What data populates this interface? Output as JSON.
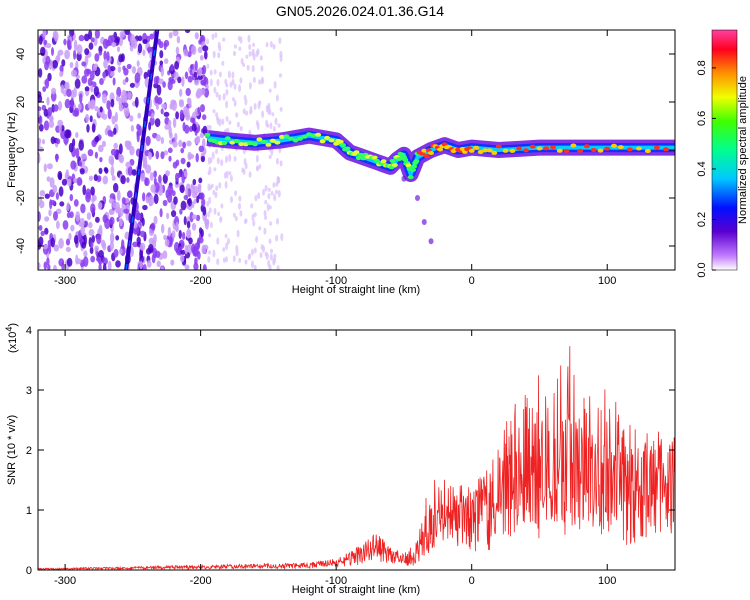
{
  "title": "GN05.2026.024.01.36.G14",
  "colors": {
    "axis": "#000000",
    "snr_line": "#ee2222",
    "background": "#ffffff"
  },
  "chart_data": [
    {
      "type": "heatmap",
      "name": "spectrogram",
      "xlabel": "Height of straight line (km)",
      "ylabel": "Frequency (Hz)",
      "xlim": [
        -320,
        150
      ],
      "ylim": [
        -50,
        50
      ],
      "x_ticks": [
        -300,
        -200,
        -100,
        0,
        100
      ],
      "x_tick_labels": [
        "-300",
        "-200",
        "-100",
        "0",
        "100"
      ],
      "y_ticks": [
        -40,
        -20,
        0,
        20,
        40
      ],
      "y_tick_labels": [
        "-40",
        "-20",
        "0",
        "20",
        "40"
      ],
      "colorbar": {
        "label": "Normalized spectral amplitude",
        "range": [
          0,
          0.95
        ],
        "ticks": [
          0.0,
          0.2,
          0.4,
          0.6,
          0.8
        ],
        "tick_labels": [
          "0.0",
          "0.2",
          "0.4",
          "0.6",
          "0.8"
        ],
        "colormap": "rainbow"
      },
      "features": {
        "noise_band_x": [
          -320,
          -195
        ],
        "diagonal_streak": {
          "x": [
            -255,
            -232
          ],
          "y": [
            -50,
            50
          ]
        },
        "main_trace": [
          [
            -195,
            5
          ],
          [
            -180,
            4
          ],
          [
            -160,
            3
          ],
          [
            -140,
            4
          ],
          [
            -120,
            6
          ],
          [
            -100,
            4
          ],
          [
            -90,
            -1
          ],
          [
            -80,
            -3
          ],
          [
            -70,
            -5
          ],
          [
            -60,
            -7
          ],
          [
            -55,
            -4
          ],
          [
            -50,
            -2
          ],
          [
            -45,
            -10
          ],
          [
            -40,
            -3
          ],
          [
            -30,
            0
          ],
          [
            -20,
            2
          ],
          [
            -10,
            0
          ],
          [
            0,
            1
          ],
          [
            20,
            0
          ],
          [
            50,
            1
          ],
          [
            80,
            1
          ],
          [
            110,
            1
          ],
          [
            150,
            1
          ]
        ],
        "faint_tail": [
          [
            -50,
            -12
          ],
          [
            -40,
            -20
          ],
          [
            -35,
            -30
          ],
          [
            -30,
            -38
          ]
        ]
      }
    },
    {
      "type": "line",
      "name": "snr",
      "xlabel": "Height of straight line (km)",
      "ylabel": "SNR (10 * v/v)",
      "y_multiplier": "(x10",
      "y_multiplier_exp": "4",
      "y_multiplier_close": ")",
      "xlim": [
        -320,
        150
      ],
      "ylim": [
        0,
        4
      ],
      "x_ticks": [
        -300,
        -200,
        -100,
        0,
        100
      ],
      "x_tick_labels": [
        "-300",
        "-200",
        "-100",
        "0",
        "100"
      ],
      "y_ticks": [
        0,
        1,
        2,
        3,
        4
      ],
      "y_tick_labels": [
        "0",
        "1",
        "2",
        "3",
        "4"
      ],
      "series": [
        {
          "x": [
            -320,
            -300,
            -280,
            -260,
            -240,
            -220,
            -200,
            -180,
            -160,
            -140,
            -120,
            -110,
            -100,
            -90,
            -80,
            -70,
            -60,
            -50,
            -40,
            -30,
            -20,
            -10,
            0,
            10,
            20,
            30,
            40,
            50,
            60,
            70,
            80,
            90,
            100,
            110,
            120,
            130,
            140,
            150
          ],
          "values": [
            0.02,
            0.02,
            0.03,
            0.03,
            0.04,
            0.05,
            0.05,
            0.06,
            0.07,
            0.07,
            0.08,
            0.1,
            0.12,
            0.18,
            0.28,
            0.42,
            0.22,
            0.15,
            0.25,
            0.7,
            0.95,
            0.95,
            0.9,
            1.0,
            1.2,
            1.3,
            1.5,
            1.6,
            1.5,
            1.7,
            1.6,
            1.4,
            1.5,
            1.4,
            1.3,
            1.4,
            1.5,
            1.5
          ],
          "envelope": [
            0.03,
            0.03,
            0.04,
            0.04,
            0.05,
            0.07,
            0.07,
            0.08,
            0.09,
            0.1,
            0.12,
            0.15,
            0.2,
            0.3,
            0.45,
            0.65,
            0.4,
            0.3,
            0.5,
            1.8,
            1.4,
            1.4,
            1.3,
            1.6,
            2.2,
            2.7,
            3.1,
            3.3,
            3.2,
            4.0,
            3.2,
            3.0,
            3.1,
            2.9,
            2.5,
            2.3,
            2.2,
            2.0
          ]
        }
      ]
    }
  ]
}
